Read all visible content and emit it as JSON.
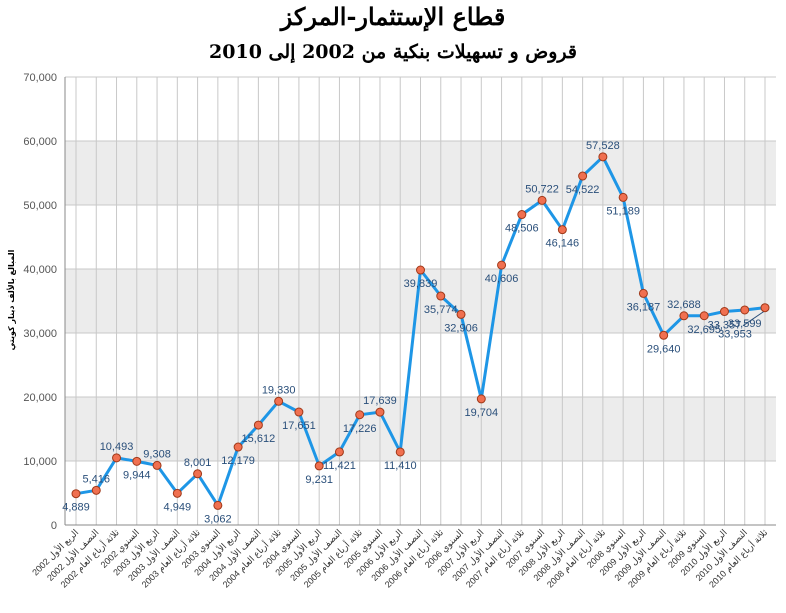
{
  "title": "قطاع الإستثمار-المركز",
  "subtitle": "قروض و تسهيلات بنكية من 2002 إلى 2010",
  "colors": {
    "line": "#1e96e6",
    "marker_fill": "#f07050",
    "marker_stroke": "#a03818",
    "band": "#ececec",
    "grid": "#c8c8c8"
  },
  "chart_data": {
    "type": "line",
    "title": "قطاع الإستثمار-المركز",
    "subtitle": "قروض و تسهيلات بنكية من 2002 إلى 2010",
    "xlabel": "",
    "ylabel": "المبالغ بالألف دينار كويتي",
    "ylim": [
      0,
      70000
    ],
    "yticks": [
      "0",
      "10,000",
      "20,000",
      "30,000",
      "40,000",
      "50,000",
      "60,000",
      "70,000"
    ],
    "ytick_values": [
      0,
      10000,
      20000,
      30000,
      40000,
      50000,
      60000,
      70000
    ],
    "grid": true,
    "categories": [
      "الربع الأول 2002",
      "النصف الأول 2002",
      "ثلاثة أرباع العام 2002",
      "السنوي 2002",
      "الربع الأول 2003",
      "النصف الأول 2003",
      "ثلاثة أرباع العام 2003",
      "السنوي 2003",
      "الربع الأول 2004",
      "النصف الأول 2004",
      "ثلاثة أرباع العام 2004",
      "السنوي 2004",
      "الربع الأول 2005",
      "النصف الأول 2005",
      "ثلاثة أرباع العام 2005",
      "السنوي 2005",
      "الربع الأول 2006",
      "النصف الأول 2006",
      "ثلاثة أرباع العام 2006",
      "السنوي 2006",
      "الربع الأول 2007",
      "النصف الأول 2007",
      "ثلاثة أرباع العام 2007",
      "السنوي 2007",
      "الربع الأول 2008",
      "النصف الأول 2008",
      "ثلاثة أرباع العام 2008",
      "السنوي 2008",
      "الربع الأول 2009",
      "النصف الأول 2009",
      "ثلاثة أرباع العام 2009",
      "السنوي 2009",
      "الربع الأول 2010",
      "النصف الأول 2010",
      "ثلاثة أرباع العام 2010"
    ],
    "values": [
      4889,
      5416,
      10493,
      9944,
      9308,
      4949,
      8001,
      3062,
      12179,
      15612,
      19330,
      17651,
      9231,
      11421,
      17226,
      17639,
      11410,
      39839,
      35774,
      32906,
      19704,
      40606,
      48506,
      50722,
      46146,
      54522,
      57528,
      51189,
      36187,
      29640,
      32688,
      32695,
      33357,
      33599,
      33953
    ],
    "data_labels": [
      "4,889",
      "5,416",
      "10,493",
      "9,944",
      "9,308",
      "4,949",
      "8,001",
      "3,062",
      "12,179",
      "15,612",
      "19,330",
      "17,651",
      "9,231",
      "11,421",
      "17,226",
      "17,639",
      "11,410",
      "39,839",
      "35,774",
      "32,906",
      "19,704",
      "40,606",
      "48,506",
      "50,722",
      "46,146",
      "54,522",
      "57,528",
      "51,189",
      "36,187",
      "29,640",
      "32,688",
      "32,695",
      "33,357",
      "33,599",
      "33,953"
    ]
  }
}
